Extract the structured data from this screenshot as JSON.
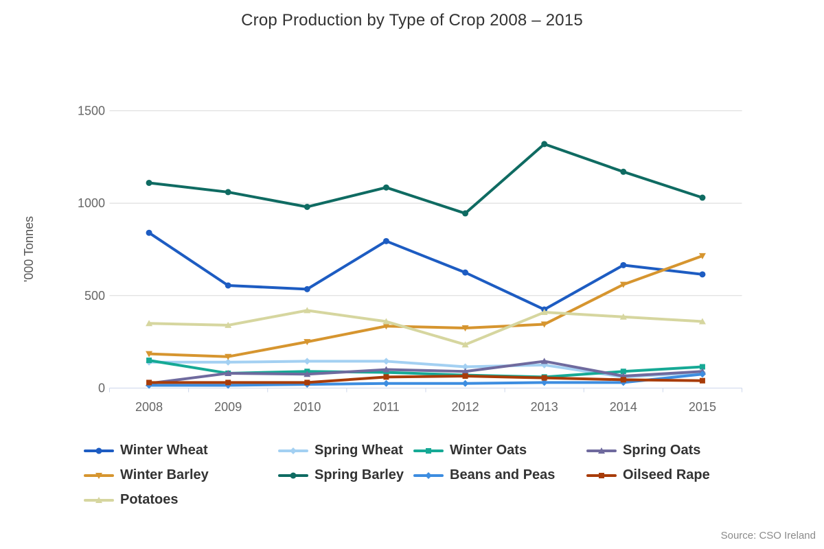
{
  "title": "Crop Production by Type of Crop 2008 – 2015",
  "source": "Source: CSO Ireland",
  "colors": {
    "background": "#ffffff",
    "title_text": "#333333",
    "gridline": "#d8d8d8",
    "axis_line": "#ccd6eb",
    "tick_label": "#666666",
    "axis_title": "#555555",
    "legend_text": "#333333",
    "source_text": "#8a8a8a"
  },
  "chart_data": {
    "type": "line",
    "title": "Crop Production by Type of Crop 2008 – 2015",
    "xlabel": "",
    "ylabel": "'000 Tonnes",
    "x": [
      2008,
      2009,
      2010,
      2011,
      2012,
      2013,
      2014,
      2015
    ],
    "ylim": [
      0,
      1500
    ],
    "yticks": [
      0,
      500,
      1000,
      1500
    ],
    "grid": true,
    "legend_position": "bottom",
    "series": [
      {
        "name": "Winter Wheat",
        "color": "#1d5cc2",
        "symbol": "circle",
        "values": [
          840,
          555,
          535,
          795,
          625,
          425,
          665,
          615
        ]
      },
      {
        "name": "Spring Wheat",
        "color": "#a3d0f2",
        "symbol": "diamond",
        "values": [
          140,
          140,
          145,
          145,
          115,
          125,
          60,
          85
        ]
      },
      {
        "name": "Winter Oats",
        "color": "#16a995",
        "symbol": "square",
        "values": [
          150,
          80,
          90,
          85,
          70,
          60,
          90,
          115
        ]
      },
      {
        "name": "Spring Oats",
        "color": "#6f6a9e",
        "symbol": "triangle",
        "values": [
          25,
          80,
          75,
          100,
          90,
          145,
          65,
          90
        ]
      },
      {
        "name": "Winter Barley",
        "color": "#d6952f",
        "symbol": "triangle-down",
        "values": [
          185,
          170,
          250,
          335,
          325,
          345,
          560,
          715
        ]
      },
      {
        "name": "Spring Barley",
        "color": "#0f6b62",
        "symbol": "circle",
        "values": [
          1110,
          1060,
          980,
          1085,
          945,
          1320,
          1170,
          1030
        ]
      },
      {
        "name": "Beans and Peas",
        "color": "#3d8de0",
        "symbol": "diamond",
        "values": [
          15,
          15,
          20,
          25,
          25,
          30,
          30,
          75
        ]
      },
      {
        "name": "Oilseed Rape",
        "color": "#a83c09",
        "symbol": "square",
        "values": [
          30,
          30,
          30,
          60,
          65,
          55,
          45,
          40
        ]
      },
      {
        "name": "Potatoes",
        "color": "#d6d69f",
        "symbol": "triangle",
        "values": [
          350,
          340,
          420,
          360,
          235,
          410,
          385,
          360
        ]
      }
    ]
  }
}
